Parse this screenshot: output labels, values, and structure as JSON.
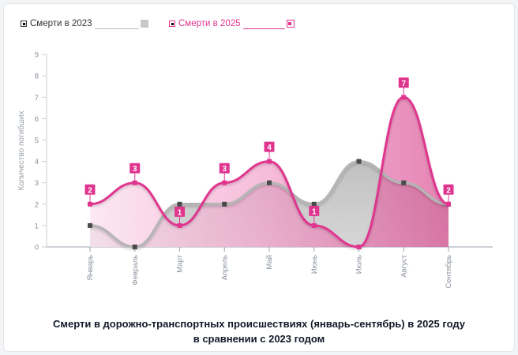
{
  "chart_data": {
    "type": "area",
    "categories": [
      "Январь",
      "Февраль",
      "Март",
      "Апрель",
      "Май",
      "Июнь",
      "Июль",
      "Август",
      "Сентябрь"
    ],
    "series": [
      {
        "name": "Смерти в 2023",
        "values": [
          1,
          0,
          2,
          2,
          3,
          2,
          4,
          3,
          2
        ],
        "color": "#9e9e9e"
      },
      {
        "name": "Смерти в 2025",
        "values": [
          2,
          3,
          1,
          3,
          4,
          1,
          0,
          7,
          2
        ],
        "color": "#e0358f"
      }
    ],
    "ylabel": "Количество погибших",
    "xlabel": "",
    "ylim": [
      0,
      9
    ],
    "yticks": [
      0,
      1,
      2,
      3,
      4,
      5,
      6,
      7,
      8,
      9
    ],
    "grid": false,
    "legend": "top-left",
    "title_line1": "Смерти в дорожно-транспортных происшествиях (январь-сентябрь) в 2025 году",
    "title_line2": "в сравнении с 2023 годом"
  }
}
